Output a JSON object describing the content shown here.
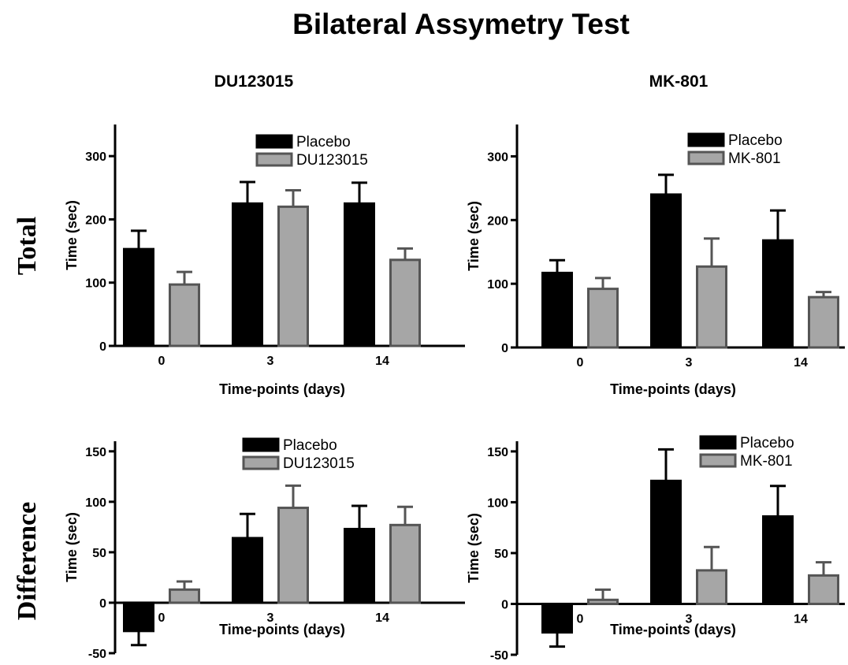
{
  "figure": {
    "title": "Bilateral Assymetry Test",
    "column_titles": [
      "DU123015",
      "MK-801"
    ],
    "row_labels": [
      "Total",
      "Difference"
    ]
  },
  "colors": {
    "placebo": "#000000",
    "drug_fill": "#a6a6a6",
    "drug_edge": "#555555"
  },
  "chart_data": [
    {
      "type": "bar",
      "panel": "Total / DU123015",
      "categories": [
        "0",
        "3",
        "14"
      ],
      "xlabel": "Time-points (days)",
      "ylabel": "Time (sec)",
      "ylim": [
        0,
        350
      ],
      "yticks": [
        0,
        100,
        200,
        300
      ],
      "legend_position": "top-center",
      "series": [
        {
          "name": "Placebo",
          "values": [
            153,
            225,
            225
          ],
          "errors": [
            29,
            34,
            33
          ]
        },
        {
          "name": "DU123015",
          "values": [
            97,
            220,
            136
          ],
          "errors": [
            20,
            26,
            18
          ]
        }
      ]
    },
    {
      "type": "bar",
      "panel": "Total / MK-801",
      "categories": [
        "0",
        "3",
        "14"
      ],
      "xlabel": "Time-points (days)",
      "ylabel": "Time (sec)",
      "ylim": [
        0,
        350
      ],
      "yticks": [
        0,
        100,
        200,
        300
      ],
      "legend_position": "top-right",
      "series": [
        {
          "name": "Placebo",
          "values": [
            117,
            240,
            168
          ],
          "errors": [
            20,
            31,
            47
          ]
        },
        {
          "name": "MK-801",
          "values": [
            92,
            127,
            79
          ],
          "errors": [
            17,
            44,
            8
          ]
        }
      ]
    },
    {
      "type": "bar",
      "panel": "Difference / DU123015",
      "categories": [
        "0",
        "3",
        "14"
      ],
      "xlabel": "Time-points (days)",
      "ylabel": "Time (sec)",
      "ylim": [
        -50,
        160
      ],
      "yticks": [
        -50,
        0,
        50,
        100,
        150
      ],
      "legend_position": "top-center",
      "series": [
        {
          "name": "Placebo",
          "values": [
            -28,
            64,
            73
          ],
          "errors": [
            14,
            24,
            23
          ]
        },
        {
          "name": "DU123015",
          "values": [
            13,
            94,
            77
          ],
          "errors": [
            8,
            22,
            18
          ]
        }
      ]
    },
    {
      "type": "bar",
      "panel": "Difference / MK-801",
      "categories": [
        "0",
        "3",
        "14"
      ],
      "xlabel": "Time-points (days)",
      "ylabel": "Time (sec)",
      "ylim": [
        -50,
        160
      ],
      "yticks": [
        -50,
        0,
        50,
        100,
        150
      ],
      "legend_position": "top-right",
      "series": [
        {
          "name": "Placebo",
          "values": [
            -28,
            121,
            86
          ],
          "errors": [
            14,
            31,
            30
          ]
        },
        {
          "name": "MK-801",
          "values": [
            4,
            33,
            28
          ],
          "errors": [
            10,
            23,
            13
          ]
        }
      ]
    }
  ]
}
